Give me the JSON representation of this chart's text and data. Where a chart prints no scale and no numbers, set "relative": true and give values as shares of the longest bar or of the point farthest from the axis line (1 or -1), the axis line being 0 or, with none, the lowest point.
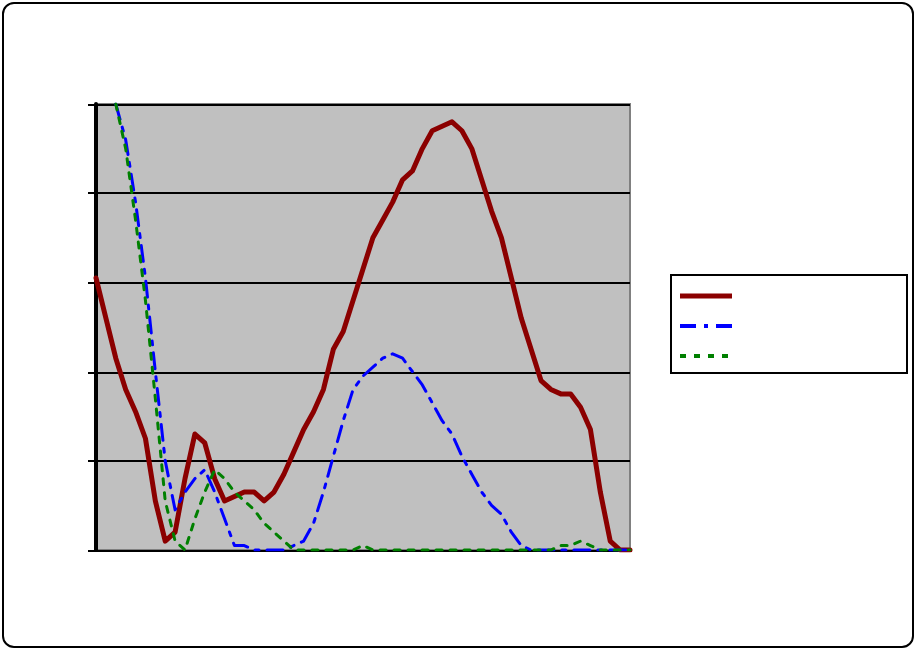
{
  "chart_data": {
    "type": "line",
    "relative": true,
    "grid": "y",
    "marker": "none",
    "categories": [
      null,
      null,
      null,
      null,
      null,
      null,
      null,
      null,
      null,
      null,
      null,
      null,
      null,
      null,
      null,
      null,
      null,
      null,
      null,
      null,
      null,
      null,
      null,
      null,
      null,
      null,
      null,
      null,
      null,
      null,
      null,
      null,
      null,
      null,
      null,
      null,
      null,
      null,
      null,
      null,
      null,
      null,
      null,
      null,
      null,
      null,
      null,
      null,
      null,
      null,
      null,
      null,
      null,
      null,
      null
    ],
    "series": [
      {
        "color": "#8b0000",
        "line_style": "solid",
        "values": [
          0.61,
          0.52,
          0.43,
          0.36,
          0.31,
          0.25,
          0.11,
          0.02,
          0.04,
          0.16,
          0.26,
          0.24,
          0.16,
          0.11,
          0.12,
          0.13,
          0.13,
          0.11,
          0.13,
          0.17,
          0.22,
          0.27,
          0.31,
          0.36,
          0.45,
          0.49,
          0.56,
          0.63,
          0.7,
          0.74,
          0.78,
          0.83,
          0.85,
          0.9,
          0.94,
          0.95,
          0.96,
          0.94,
          0.9,
          0.83,
          0.76,
          0.7,
          0.61,
          0.52,
          0.45,
          0.38,
          0.36,
          0.35,
          0.35,
          0.32,
          0.27,
          0.13,
          0.02,
          0,
          0
        ]
      },
      {
        "color": "#0000ff",
        "line_style": "dashed",
        "values": [
          null,
          null,
          1,
          0.92,
          0.78,
          0.61,
          0.4,
          0.2,
          0.09,
          0.13,
          0.16,
          0.18,
          0.13,
          0.07,
          0.01,
          0.01,
          0,
          0,
          0,
          0,
          0.01,
          0.02,
          0.06,
          0.13,
          0.21,
          0.29,
          0.36,
          0.39,
          0.41,
          0.43,
          0.44,
          0.43,
          0.4,
          0.37,
          0.33,
          0.29,
          0.26,
          0.21,
          0.17,
          0.13,
          0.1,
          0.08,
          0.04,
          0.01,
          0,
          0,
          0,
          0,
          0,
          0,
          0,
          0,
          0,
          0,
          0
        ]
      },
      {
        "color": "#008000",
        "line_style": "dotted",
        "values": [
          null,
          null,
          1,
          0.9,
          0.74,
          0.56,
          0.34,
          0.11,
          0.02,
          0,
          0.07,
          0.13,
          0.18,
          0.16,
          0.13,
          0.11,
          0.09,
          0.06,
          0.04,
          0.02,
          0,
          0,
          0,
          0,
          0,
          0,
          0,
          0.01,
          0,
          0,
          0,
          0,
          0,
          0,
          0,
          0,
          0,
          0,
          0,
          0,
          0,
          0,
          0,
          0,
          0,
          0,
          0,
          0.01,
          0.01,
          0.02,
          0.01,
          0,
          0,
          0,
          0
        ]
      }
    ]
  }
}
